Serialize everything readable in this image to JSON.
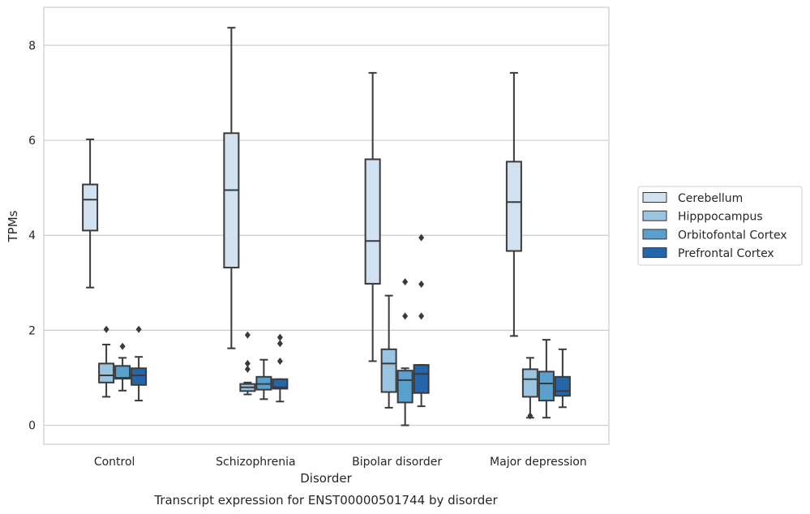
{
  "chart_data": {
    "type": "box",
    "caption": "Transcript expression for ENST00000501744 by disorder",
    "xlabel": "Disorder",
    "ylabel": "TPMs",
    "ylim": [
      -0.4,
      8.8
    ],
    "yticks": [
      0,
      2,
      4,
      6,
      8
    ],
    "grid": true,
    "legend_position": "right",
    "categories": [
      "Control",
      "Schizophrenia",
      "Bipolar disorder",
      "Major depression"
    ],
    "series": [
      {
        "name": "Cerebellum",
        "color": "#d1e1f0",
        "boxes": [
          {
            "whisker_low": 2.9,
            "q1": 4.1,
            "median": 4.75,
            "q3": 5.07,
            "whisker_high": 6.02,
            "outliers": []
          },
          {
            "whisker_low": 1.62,
            "q1": 3.32,
            "median": 4.95,
            "q3": 6.15,
            "whisker_high": 8.37,
            "outliers": []
          },
          {
            "whisker_low": 1.35,
            "q1": 2.98,
            "median": 3.88,
            "q3": 5.6,
            "whisker_high": 7.42,
            "outliers": []
          },
          {
            "whisker_low": 1.88,
            "q1": 3.67,
            "median": 4.7,
            "q3": 5.55,
            "whisker_high": 7.42,
            "outliers": []
          }
        ]
      },
      {
        "name": "Hipppocampus",
        "color": "#9ac4e0",
        "boxes": [
          {
            "whisker_low": 0.6,
            "q1": 0.9,
            "median": 1.05,
            "q3": 1.3,
            "whisker_high": 1.7,
            "outliers": [
              2.02
            ]
          },
          {
            "whisker_low": 0.65,
            "q1": 0.72,
            "median": 0.8,
            "q3": 0.87,
            "whisker_high": 0.9,
            "outliers": [
              1.18,
              1.3,
              1.9
            ]
          },
          {
            "whisker_low": 0.37,
            "q1": 0.7,
            "median": 1.3,
            "q3": 1.6,
            "whisker_high": 2.73,
            "outliers": []
          },
          {
            "whisker_low": 0.16,
            "q1": 0.6,
            "median": 0.97,
            "q3": 1.18,
            "whisker_high": 1.42,
            "outliers": [
              0.2
            ]
          }
        ]
      },
      {
        "name": "Orbitofontal Cortex",
        "color": "#5aa0cd",
        "boxes": [
          {
            "whisker_low": 0.73,
            "q1": 0.98,
            "median": 1.0,
            "q3": 1.25,
            "whisker_high": 1.42,
            "outliers": [
              1.66
            ]
          },
          {
            "whisker_low": 0.55,
            "q1": 0.75,
            "median": 0.87,
            "q3": 1.02,
            "whisker_high": 1.38,
            "outliers": []
          },
          {
            "whisker_low": 0.0,
            "q1": 0.48,
            "median": 0.95,
            "q3": 1.15,
            "whisker_high": 1.2,
            "outliers": [
              2.3,
              3.02
            ]
          },
          {
            "whisker_low": 0.16,
            "q1": 0.52,
            "median": 0.88,
            "q3": 1.13,
            "whisker_high": 1.8,
            "outliers": []
          }
        ]
      },
      {
        "name": "Prefrontal Cortex",
        "color": "#2566ab",
        "boxes": [
          {
            "whisker_low": 0.52,
            "q1": 0.85,
            "median": 1.05,
            "q3": 1.2,
            "whisker_high": 1.44,
            "outliers": [
              2.02
            ]
          },
          {
            "whisker_low": 0.5,
            "q1": 0.77,
            "median": 0.8,
            "q3": 0.97,
            "whisker_high": 0.97,
            "outliers": [
              1.35,
              1.72,
              1.85
            ]
          },
          {
            "whisker_low": 0.4,
            "q1": 0.68,
            "median": 1.08,
            "q3": 1.27,
            "whisker_high": 1.27,
            "outliers": [
              2.3,
              2.97,
              3.95
            ]
          },
          {
            "whisker_low": 0.38,
            "q1": 0.62,
            "median": 0.72,
            "q3": 1.02,
            "whisker_high": 1.6,
            "outliers": []
          }
        ]
      }
    ]
  }
}
